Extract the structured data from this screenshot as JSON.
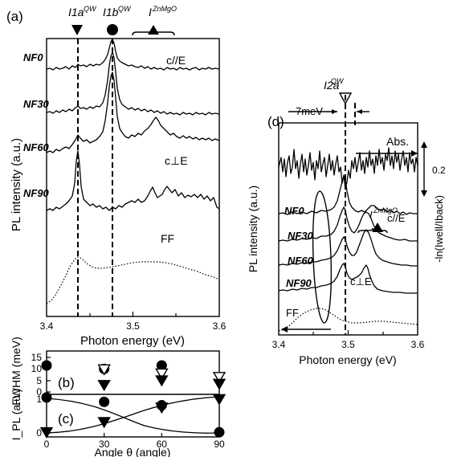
{
  "chart_data": [
    {
      "panel": "(a)",
      "type": "line",
      "xlabel": "Photon energy (eV)",
      "ylabel": "PL intensity (a.u.)",
      "xlim": [
        3.4,
        3.6
      ],
      "xticks": [
        "3.4",
        "3.5",
        "3.6"
      ],
      "peak_labels": [
        "I1a",
        "QW",
        "I1b",
        "QW",
        "I",
        "ZnMgO"
      ],
      "reference_lines_eV": [
        3.445,
        3.485
      ],
      "annotations": [
        "c//E",
        "c⊥E",
        "FF"
      ],
      "series": [
        {
          "name": "NF0",
          "peaks_eV": [
            3.485
          ],
          "style": "solid"
        },
        {
          "name": "NF30",
          "peaks_eV": [
            3.485
          ],
          "style": "solid"
        },
        {
          "name": "NF60",
          "peaks_eV": [
            3.485,
            3.545
          ],
          "style": "solid"
        },
        {
          "name": "NF90",
          "peaks_eV": [
            3.447,
            3.535,
            3.555
          ],
          "style": "solid"
        },
        {
          "name": "FF",
          "peaks_eV": [
            3.445,
            3.52
          ],
          "style": "dotted"
        }
      ]
    },
    {
      "panel": "(b)",
      "type": "scatter",
      "xlabel": "Angle θ (angle)",
      "ylabel": "FWHM (meV)",
      "ylim": [
        0,
        15
      ],
      "yticks": [
        "0",
        "5",
        "10",
        "15"
      ],
      "xticks": [
        "0",
        "30",
        "60",
        "90"
      ],
      "series": [
        {
          "name": "I1b QW (circle)",
          "x": [
            0,
            30,
            60
          ],
          "y": [
            11.5,
            10.0,
            11.5
          ]
        },
        {
          "name": "I1a QW (down triangle)",
          "x": [
            30,
            60,
            90
          ],
          "y": [
            3.0,
            5.0,
            3.5
          ]
        },
        {
          "name": "I2a QW (open triangle)",
          "x": [
            30,
            60,
            90
          ],
          "y": [
            9.8,
            8.0,
            6.5
          ]
        }
      ]
    },
    {
      "panel": "(c)",
      "type": "scatter",
      "xlabel": "Angle θ (angle)",
      "ylabel": "I_PL (a.u.)",
      "ylim": [
        0,
        1.1
      ],
      "yticks": [
        "0",
        "1"
      ],
      "xticks": [
        "0",
        "30",
        "60",
        "90"
      ],
      "series": [
        {
          "name": "I1b QW (circle)",
          "x": [
            0,
            30,
            60,
            90
          ],
          "y": [
            1.05,
            0.92,
            0.82,
            0.02
          ]
        },
        {
          "name": "I1a QW (down triangle)",
          "x": [
            0,
            30,
            60,
            90
          ],
          "y": [
            0.02,
            0.32,
            0.75,
            1.0
          ]
        }
      ]
    },
    {
      "panel": "(d)",
      "type": "line",
      "xlabel": "Photon energy (eV)",
      "ylabel": "PL intensity (a.u.)",
      "y2label": "-ln(Iwell/Iback)",
      "xlim": [
        3.4,
        3.6
      ],
      "xticks": [
        "3.4",
        "3.5",
        "3.6"
      ],
      "peak_label": [
        "I2a",
        "QW"
      ],
      "reference_line_eV": 3.505,
      "annotations": [
        "7meV",
        "Abs.",
        "0.2",
        "I",
        "ZnMgO",
        "c//E",
        "c⊥E",
        "FF"
      ],
      "series": [
        {
          "name": "Abs.",
          "style": "noisy"
        },
        {
          "name": "NF0",
          "peaks_eV": [
            3.505,
            3.528
          ]
        },
        {
          "name": "NF30",
          "peaks_eV": [
            3.505,
            3.535
          ]
        },
        {
          "name": "NF60",
          "peaks_eV": [
            3.505,
            3.535
          ]
        },
        {
          "name": "NF90",
          "peaks_eV": [
            3.505,
            3.53
          ]
        },
        {
          "name": "FF",
          "peaks_eV": [
            3.48
          ],
          "style": "dotted"
        }
      ]
    }
  ]
}
